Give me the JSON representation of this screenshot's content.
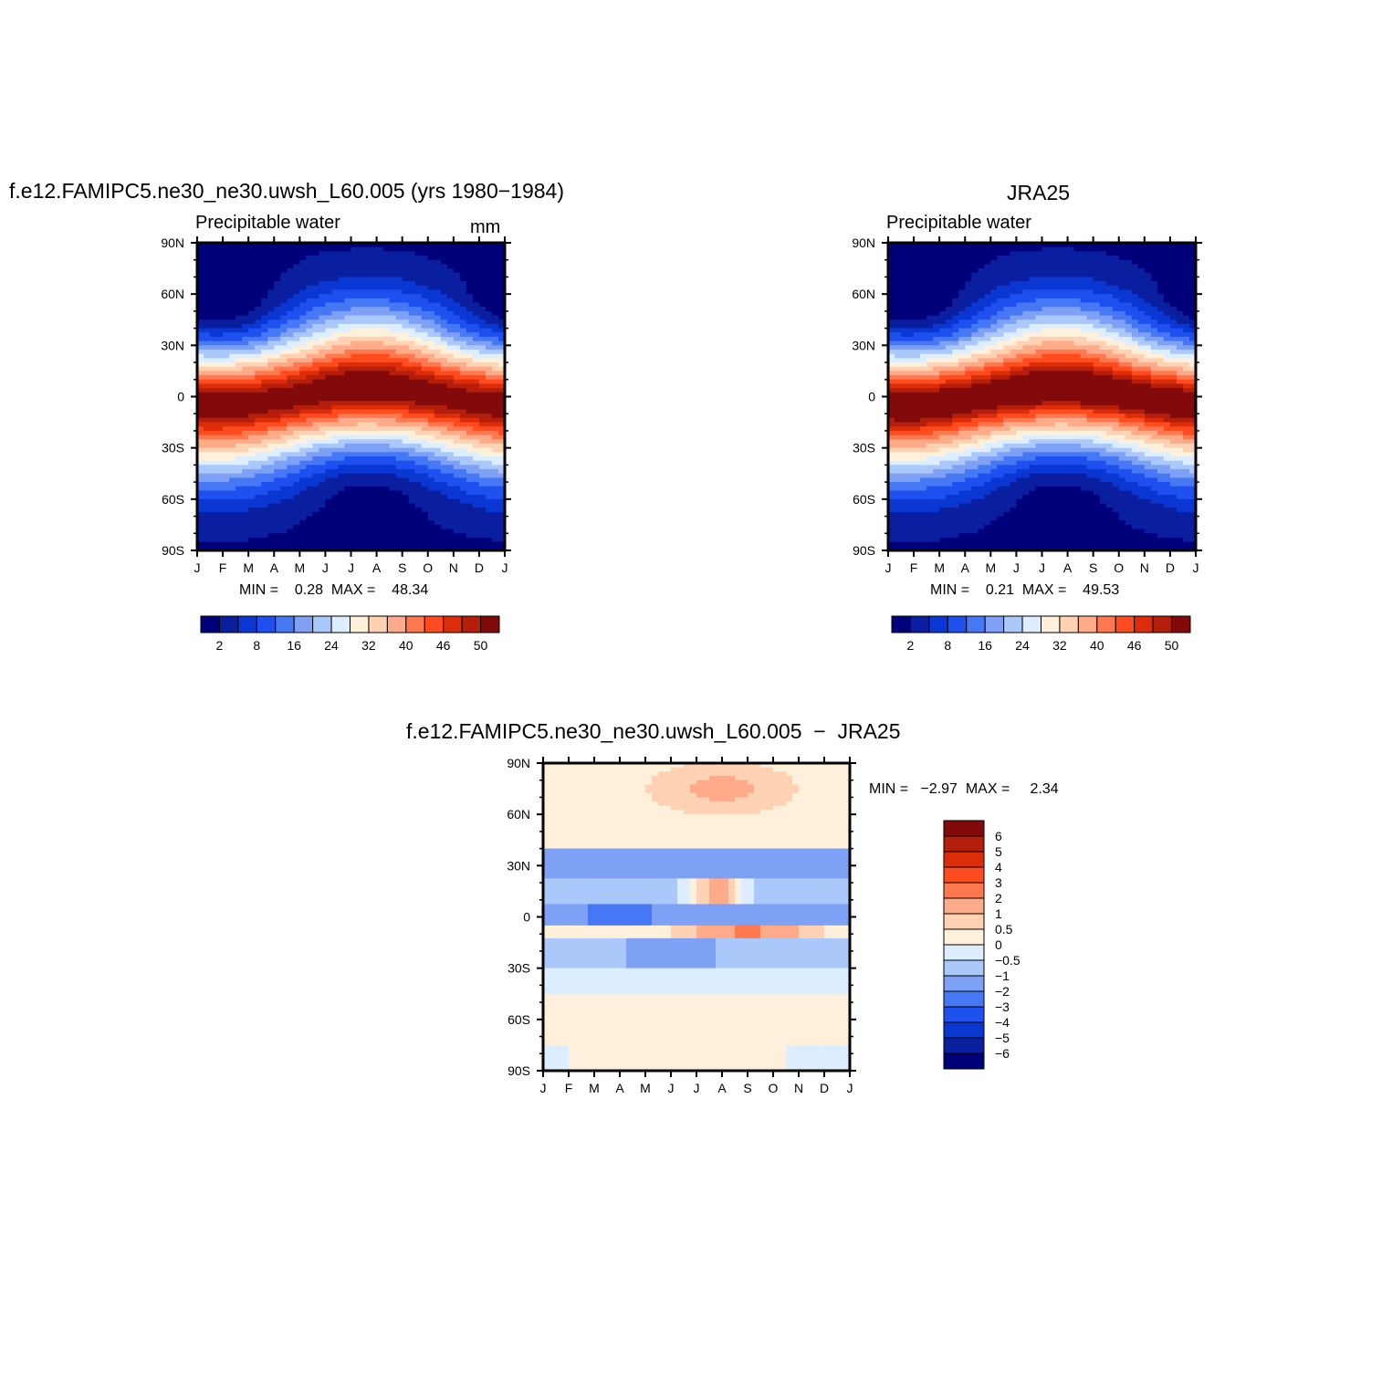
{
  "figure": {
    "panel_a": {
      "title": "f.e12.FAMIPC5.ne30_ne30.uwsh_L60.005 (yrs 1980−1984)",
      "variable": "Precipitable water",
      "units": "mm",
      "stats": "MIN =    0.28  MAX =    48.34"
    },
    "panel_b": {
      "title": "JRA25",
      "variable": "Precipitable water",
      "stats": "MIN =    0.21  MAX =    49.53"
    },
    "panel_c": {
      "title": "f.e12.FAMIPC5.ne30_ne30.uwsh_L60.005  −  JRA25",
      "stats": "MIN =   −2.97  MAX =     2.34"
    }
  },
  "chart_data": [
    {
      "type": "heatmap",
      "id": "model",
      "title": "f.e12.FAMIPC5.ne30_ne30.uwsh_L60.005 (yrs 1980−1984)",
      "subtitle": "Precipitable water",
      "units": "mm",
      "x_ticks": [
        "J",
        "F",
        "M",
        "A",
        "M",
        "J",
        "J",
        "A",
        "S",
        "O",
        "N",
        "D",
        "J"
      ],
      "y_ticks": [
        "90N",
        "60N",
        "30N",
        "0",
        "30S",
        "60S",
        "90S"
      ],
      "ylim": [
        -90,
        90
      ],
      "min": 0.28,
      "max": 48.34,
      "colorbar": {
        "orientation": "horizontal",
        "colors": [
          "#00007a",
          "#0a1fa0",
          "#0a37d2",
          "#1e50f0",
          "#4678f5",
          "#7ea0f5",
          "#aac8fa",
          "#dceeff",
          "#fff0dc",
          "#ffd2b4",
          "#ffaa88",
          "#ff7850",
          "#ff4b1e",
          "#dc2d0a",
          "#b41e0a",
          "#820a0a"
        ],
        "labels": [
          "2",
          "8",
          "16",
          "24",
          "32",
          "40",
          "46",
          "50"
        ]
      }
    },
    {
      "type": "heatmap",
      "id": "obs",
      "title": "JRA25",
      "subtitle": "Precipitable water",
      "x_ticks": [
        "J",
        "F",
        "M",
        "A",
        "M",
        "J",
        "J",
        "A",
        "S",
        "O",
        "N",
        "D",
        "J"
      ],
      "y_ticks": [
        "90N",
        "60N",
        "30N",
        "0",
        "30S",
        "60S",
        "90S"
      ],
      "ylim": [
        -90,
        90
      ],
      "min": 0.21,
      "max": 49.53,
      "colorbar": {
        "orientation": "horizontal",
        "colors": [
          "#00007a",
          "#0a1fa0",
          "#0a37d2",
          "#1e50f0",
          "#4678f5",
          "#7ea0f5",
          "#aac8fa",
          "#dceeff",
          "#fff0dc",
          "#ffd2b4",
          "#ffaa88",
          "#ff7850",
          "#ff4b1e",
          "#dc2d0a",
          "#b41e0a",
          "#820a0a"
        ],
        "labels": [
          "2",
          "8",
          "16",
          "24",
          "32",
          "40",
          "46",
          "50"
        ]
      }
    },
    {
      "type": "heatmap",
      "id": "diff",
      "title": "f.e12.FAMIPC5.ne30_ne30.uwsh_L60.005  −  JRA25",
      "x_ticks": [
        "J",
        "F",
        "M",
        "A",
        "M",
        "J",
        "J",
        "A",
        "S",
        "O",
        "N",
        "D",
        "J"
      ],
      "y_ticks": [
        "90N",
        "60N",
        "30N",
        "0",
        "30S",
        "60S",
        "90S"
      ],
      "ylim": [
        -90,
        90
      ],
      "min": -2.97,
      "max": 2.34,
      "colorbar": {
        "orientation": "vertical",
        "colors": [
          "#820a0a",
          "#b41e0a",
          "#dc2d0a",
          "#ff4b1e",
          "#ff7850",
          "#ffaa88",
          "#ffd2b4",
          "#fff0dc",
          "#dceeff",
          "#aac8fa",
          "#7ea0f5",
          "#4678f5",
          "#1e50f0",
          "#0a37d2",
          "#0a1fa0",
          "#00007a"
        ],
        "labels": [
          "6",
          "5",
          "4",
          "3",
          "2",
          "1",
          "0.5",
          "0",
          "−0.5",
          "−1",
          "−2",
          "−3",
          "−4",
          "−5",
          "−6"
        ]
      }
    }
  ]
}
